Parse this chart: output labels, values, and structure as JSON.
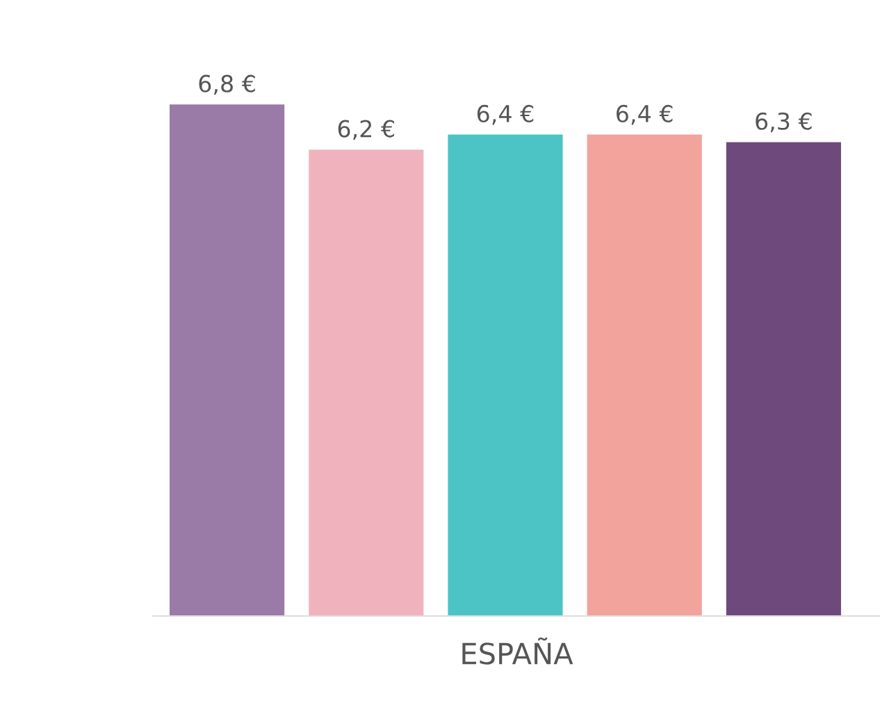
{
  "chart_data": {
    "type": "bar",
    "xlabel": "ESPAÑA",
    "categories": [
      null,
      null,
      null,
      null,
      null
    ],
    "values": [
      6.8,
      6.2,
      6.4,
      6.4,
      6.3
    ],
    "colors": [
      "#9a7aa6",
      "#f0b3bd",
      "#4cc4c6",
      "#f2a39c",
      "#6e4a7c"
    ],
    "value_labels": [
      "6,8 €",
      "6,2 €",
      "6,4 €",
      "6,4 €",
      "6,3 €"
    ],
    "tick_labels": "x",
    "grid": false,
    "legend": false
  }
}
